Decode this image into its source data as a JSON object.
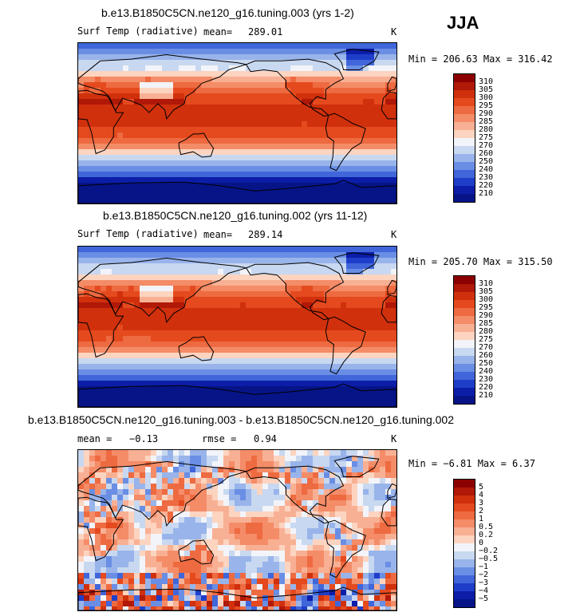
{
  "season": "JJA",
  "panels": [
    {
      "title": "b.e13.B1850C5CN.ne120_g16.tuning.003 (yrs 1-2)",
      "variable": "Surf Temp (radiative)",
      "stat1_label": "mean=",
      "stat1_value": "289.01",
      "stat2_label": "",
      "stat2_value": "",
      "units": "K",
      "minmax": "Min = 206.63 Max = 316.42",
      "colorbar": {
        "labels": [
          "310",
          "305",
          "300",
          "295",
          "290",
          "285",
          "280",
          "275",
          "270",
          "260",
          "250",
          "240",
          "230",
          "220",
          "210"
        ],
        "colors": [
          "#8b0000",
          "#b01808",
          "#d0300c",
          "#e44a1e",
          "#ee6a40",
          "#f48c68",
          "#f8b094",
          "#fcd4c0",
          "#f2f4fa",
          "#c8d8f0",
          "#98b4ea",
          "#6a8ee4",
          "#4066da",
          "#1e3eca",
          "#0c1ea8",
          "#061488"
        ]
      },
      "palette": "temp",
      "seed": 11
    },
    {
      "title": "b.e13.B1850C5CN.ne120_g16.tuning.002 (yrs 11-12)",
      "variable": "Surf Temp (radiative)",
      "stat1_label": "mean=",
      "stat1_value": "289.14",
      "stat2_label": "",
      "stat2_value": "",
      "units": "K",
      "minmax": "Min = 205.70 Max = 315.50",
      "colorbar": {
        "labels": [
          "310",
          "305",
          "300",
          "295",
          "290",
          "285",
          "280",
          "275",
          "270",
          "260",
          "250",
          "240",
          "230",
          "220",
          "210"
        ],
        "colors": [
          "#8b0000",
          "#b01808",
          "#d0300c",
          "#e44a1e",
          "#ee6a40",
          "#f48c68",
          "#f8b094",
          "#fcd4c0",
          "#f2f4fa",
          "#c8d8f0",
          "#98b4ea",
          "#6a8ee4",
          "#4066da",
          "#1e3eca",
          "#0c1ea8",
          "#061488"
        ]
      },
      "palette": "temp",
      "seed": 23
    },
    {
      "title": "b.e13.B1850C5CN.ne120_g16.tuning.003 - b.e13.B1850C5CN.ne120_g16.tuning.002",
      "variable": "",
      "stat1_label": "mean =",
      "stat1_value": "−0.13",
      "stat2_label": "rmse =",
      "stat2_value": "0.94",
      "units": "K",
      "minmax": "Min =  −6.81 Max =    6.37",
      "colorbar": {
        "labels": [
          "5",
          "4",
          "3",
          "2",
          "1",
          "0.5",
          "0.2",
          "0",
          "−0.2",
          "−0.5",
          "−1",
          "−2",
          "−3",
          "−4",
          "−5"
        ],
        "colors": [
          "#8b0000",
          "#b01808",
          "#d0300c",
          "#e44a1e",
          "#ee6a40",
          "#f48c68",
          "#f8b094",
          "#fcd4c0",
          "#f2f4fa",
          "#c8d8f0",
          "#98b4ea",
          "#6a8ee4",
          "#4066da",
          "#1e3eca",
          "#0c1ea8",
          "#061488"
        ]
      },
      "palette": "diff",
      "seed": 37
    }
  ]
}
